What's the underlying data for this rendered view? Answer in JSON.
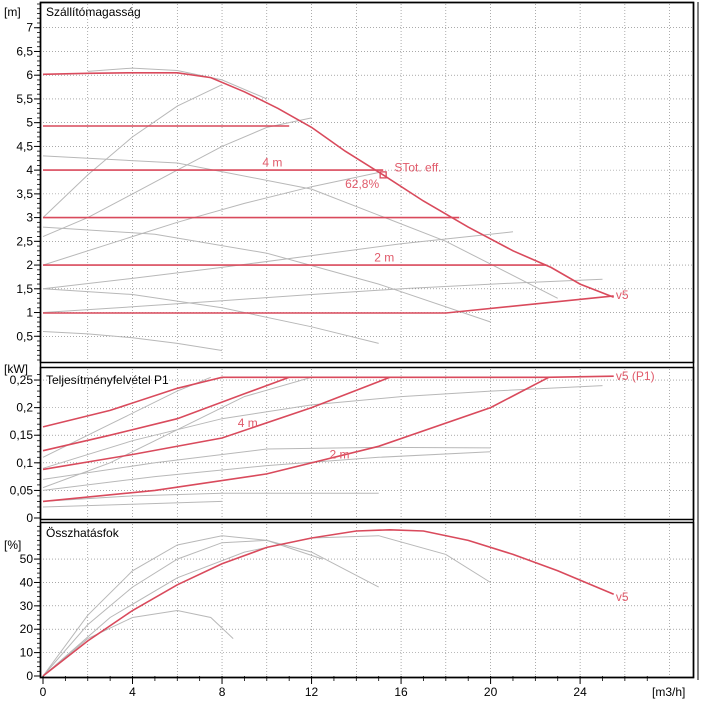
{
  "chart_data": [
    {
      "type": "line",
      "title": "Szállítómagasság",
      "ylabel": "[m]",
      "xlabel": "[m3/h]",
      "xlim": [
        0,
        29
      ],
      "ylim": [
        0,
        7.5
      ],
      "yticks": [
        "0,5",
        "1",
        "1,5",
        "2",
        "2,5",
        "3",
        "3,5",
        "4",
        "4,5",
        "5",
        "5,5",
        "6",
        "6,5",
        "7"
      ],
      "grid": true,
      "series": [
        {
          "name": "v5",
          "color": "#d94a5c",
          "x": [
            0,
            2,
            4,
            6,
            7.5,
            9,
            10.5,
            12,
            13.5,
            15.2,
            17,
            19,
            21,
            22.7,
            24,
            25.5
          ],
          "y": [
            6.02,
            6.04,
            6.05,
            6.05,
            5.95,
            5.65,
            5.3,
            4.9,
            4.4,
            3.9,
            3.35,
            2.8,
            2.3,
            1.95,
            1.6,
            1.32
          ]
        },
        {
          "color": "#d94a5c",
          "x": [
            0,
            11
          ],
          "y": [
            4.93,
            4.93
          ]
        },
        {
          "name": "4 m",
          "color": "#d94a5c",
          "x": [
            0,
            15.2
          ],
          "y": [
            4.0,
            4.0
          ]
        },
        {
          "color": "#d94a5c",
          "x": [
            0,
            18.6
          ],
          "y": [
            3.0,
            3.0
          ]
        },
        {
          "name": "2 m",
          "color": "#d94a5c",
          "x": [
            0,
            22.5
          ],
          "y": [
            2.0,
            2.0
          ]
        },
        {
          "color": "#d94a5c",
          "x": [
            0,
            18,
            25.5
          ],
          "y": [
            0.99,
            0.99,
            1.35
          ]
        }
      ],
      "grey_curves": [
        {
          "x": [
            0,
            2,
            4,
            6,
            8
          ],
          "y": [
            0.6,
            0.55,
            0.47,
            0.35,
            0.2
          ]
        },
        {
          "x": [
            0,
            4,
            8,
            12,
            15
          ],
          "y": [
            1.5,
            1.38,
            1.1,
            0.7,
            0.35
          ]
        },
        {
          "x": [
            0,
            5,
            10,
            15,
            20
          ],
          "y": [
            2.8,
            2.65,
            2.25,
            1.6,
            0.8
          ]
        },
        {
          "x": [
            0,
            6,
            12,
            18,
            23
          ],
          "y": [
            4.3,
            4.15,
            3.6,
            2.5,
            1.3
          ]
        },
        {
          "x": [
            0,
            4,
            8,
            12,
            16,
            21
          ],
          "y": [
            1.5,
            1.72,
            1.95,
            2.2,
            2.45,
            2.7
          ]
        },
        {
          "x": [
            0,
            4,
            8,
            12,
            16,
            21,
            25
          ],
          "y": [
            1.0,
            1.12,
            1.25,
            1.38,
            1.5,
            1.62,
            1.7
          ]
        },
        {
          "x": [
            0,
            3,
            6,
            9,
            12,
            15
          ],
          "y": [
            2.0,
            2.45,
            2.9,
            3.3,
            3.65,
            3.95
          ]
        },
        {
          "x": [
            0,
            2,
            4,
            6,
            8,
            10,
            12
          ],
          "y": [
            2.6,
            3.0,
            3.5,
            4.0,
            4.5,
            4.9,
            5.1
          ]
        },
        {
          "x": [
            0,
            2,
            4,
            6,
            8
          ],
          "y": [
            3.0,
            3.9,
            4.7,
            5.35,
            5.8
          ]
        },
        {
          "x": [
            2,
            4,
            6,
            8,
            10
          ],
          "y": [
            6.08,
            6.15,
            6.1,
            5.9,
            5.5
          ]
        }
      ],
      "annotations": [
        {
          "text": "4 m",
          "x": 9.8,
          "y": 4.08
        },
        {
          "text": "2 m",
          "x": 14.8,
          "y": 2.08
        },
        {
          "text": "v5",
          "x": 25.6,
          "y": 1.28
        },
        {
          "text": "STot. eff.",
          "x": 15.7,
          "y": 3.97
        },
        {
          "text": "62,8%",
          "x": 13.5,
          "y": 3.62
        }
      ],
      "operating_point": {
        "x": 15.2,
        "y": 3.9
      }
    },
    {
      "type": "line",
      "title": "Teljesítményfelvétel P1",
      "ylabel": "[kW]",
      "xlabel": "[m3/h]",
      "xlim": [
        0,
        29
      ],
      "ylim": [
        0,
        0.27
      ],
      "yticks": [
        "0",
        "0,05",
        "0,1",
        "0,15",
        "0,2",
        "0,25"
      ],
      "grid": true,
      "series": [
        {
          "name": "v5 (P1)",
          "color": "#d94a5c",
          "x": [
            0,
            3,
            6,
            8,
            12,
            16,
            22.5,
            25.5
          ],
          "y": [
            0.165,
            0.195,
            0.235,
            0.255,
            0.255,
            0.255,
            0.255,
            0.257
          ]
        },
        {
          "name": "4 m",
          "color": "#d94a5c",
          "x": [
            0,
            3,
            6,
            9,
            11
          ],
          "y": [
            0.122,
            0.15,
            0.18,
            0.225,
            0.255
          ]
        },
        {
          "color": "#d94a5c",
          "x": [
            0,
            4,
            8,
            12,
            15.5
          ],
          "y": [
            0.088,
            0.115,
            0.145,
            0.2,
            0.255
          ]
        },
        {
          "name": "2 m",
          "color": "#d94a5c",
          "x": [
            0,
            5,
            10,
            15,
            20,
            22.6
          ],
          "y": [
            0.03,
            0.05,
            0.08,
            0.13,
            0.2,
            0.255
          ]
        }
      ],
      "grey_curves": [
        {
          "x": [
            0,
            4,
            8
          ],
          "y": [
            0.02,
            0.025,
            0.03
          ]
        },
        {
          "x": [
            0,
            4,
            8,
            12,
            15
          ],
          "y": [
            0.03,
            0.04,
            0.045,
            0.045,
            0.045
          ]
        },
        {
          "x": [
            0,
            5,
            10,
            15,
            20
          ],
          "y": [
            0.05,
            0.075,
            0.095,
            0.11,
            0.12
          ]
        },
        {
          "x": [
            0,
            5,
            10,
            15,
            20
          ],
          "y": [
            0.07,
            0.1,
            0.125,
            0.128,
            0.127
          ]
        },
        {
          "x": [
            0,
            3,
            6,
            9,
            12
          ],
          "y": [
            0.055,
            0.1,
            0.16,
            0.22,
            0.255
          ]
        },
        {
          "x": [
            0,
            4,
            8,
            12,
            16,
            20,
            25
          ],
          "y": [
            0.09,
            0.14,
            0.18,
            0.205,
            0.22,
            0.23,
            0.24
          ]
        },
        {
          "x": [
            0,
            3,
            6,
            7.5
          ],
          "y": [
            0.11,
            0.17,
            0.23,
            0.255
          ]
        }
      ],
      "annotations": [
        {
          "text": "4 m",
          "x": 8.7,
          "y": 0.165
        },
        {
          "text": "2 m",
          "x": 12.8,
          "y": 0.108
        },
        {
          "text": "v5 (P1)",
          "x": 25.6,
          "y": 0.25
        }
      ]
    },
    {
      "type": "line",
      "title": "Összhatásfok",
      "ylabel": "[%]",
      "xlabel": "[m3/h]",
      "xlim": [
        0,
        29
      ],
      "ylim": [
        0,
        65
      ],
      "xticks": [
        "0",
        "4",
        "8",
        "12",
        "16",
        "20",
        "24"
      ],
      "yticks": [
        "0",
        "10",
        "20",
        "30",
        "40",
        "50"
      ],
      "grid": true,
      "series": [
        {
          "name": "v5",
          "color": "#d94a5c",
          "x": [
            0,
            2,
            4,
            6,
            8,
            10,
            12,
            14,
            15.5,
            17,
            19,
            21,
            23,
            25.5
          ],
          "y": [
            0,
            15,
            28,
            39,
            48,
            55,
            59,
            62,
            62.5,
            62,
            58,
            52,
            45,
            35
          ]
        }
      ],
      "grey_curves": [
        {
          "x": [
            0,
            2,
            4,
            6,
            7.5,
            8.5
          ],
          "y": [
            0,
            16,
            25,
            28,
            25,
            16
          ]
        },
        {
          "x": [
            0,
            2,
            4,
            6,
            8,
            10,
            12,
            15
          ],
          "y": [
            0,
            22,
            38,
            50,
            57,
            58,
            53,
            38
          ]
        },
        {
          "x": [
            0,
            2,
            4,
            6,
            8,
            10,
            12.5
          ],
          "y": [
            0,
            26,
            45,
            56,
            60,
            58,
            50
          ]
        },
        {
          "x": [
            0,
            3,
            6,
            9,
            12,
            15,
            18,
            20
          ],
          "y": [
            0,
            25,
            42,
            53,
            59,
            60,
            52,
            40
          ]
        }
      ],
      "annotations": [
        {
          "text": "v5",
          "x": 25.6,
          "y": 32
        }
      ]
    }
  ]
}
